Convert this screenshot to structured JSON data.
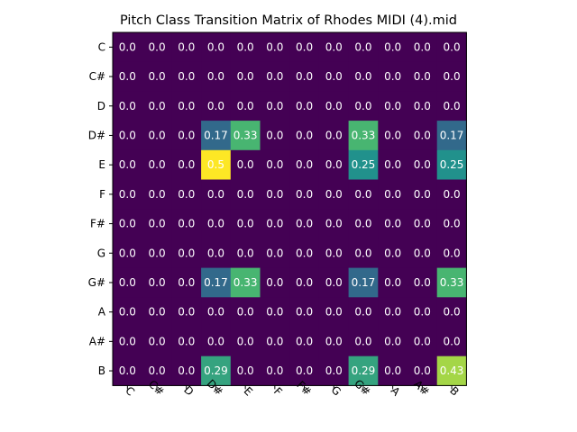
{
  "chart_data": {
    "type": "heatmap",
    "title": "Pitch Class Transition Matrix of Rhodes MIDI (4).mid",
    "xlabel": "",
    "ylabel": "",
    "x_categories": [
      "C",
      "C#",
      "D",
      "D#",
      "E",
      "F",
      "F#",
      "G",
      "G#",
      "A",
      "A#",
      "B"
    ],
    "y_categories": [
      "C",
      "C#",
      "D",
      "D#",
      "E",
      "F",
      "F#",
      "G",
      "G#",
      "A",
      "A#",
      "B"
    ],
    "x_tick_rotation_deg": 45,
    "colormap": "viridis",
    "value_range": [
      0,
      0.5
    ],
    "colorbar": false,
    "grid": false,
    "values": [
      [
        0.0,
        0.0,
        0.0,
        0.0,
        0.0,
        0.0,
        0.0,
        0.0,
        0.0,
        0.0,
        0.0,
        0.0
      ],
      [
        0.0,
        0.0,
        0.0,
        0.0,
        0.0,
        0.0,
        0.0,
        0.0,
        0.0,
        0.0,
        0.0,
        0.0
      ],
      [
        0.0,
        0.0,
        0.0,
        0.0,
        0.0,
        0.0,
        0.0,
        0.0,
        0.0,
        0.0,
        0.0,
        0.0
      ],
      [
        0.0,
        0.0,
        0.0,
        0.17,
        0.33,
        0.0,
        0.0,
        0.0,
        0.33,
        0.0,
        0.0,
        0.17
      ],
      [
        0.0,
        0.0,
        0.0,
        0.5,
        0.0,
        0.0,
        0.0,
        0.0,
        0.25,
        0.0,
        0.0,
        0.25
      ],
      [
        0.0,
        0.0,
        0.0,
        0.0,
        0.0,
        0.0,
        0.0,
        0.0,
        0.0,
        0.0,
        0.0,
        0.0
      ],
      [
        0.0,
        0.0,
        0.0,
        0.0,
        0.0,
        0.0,
        0.0,
        0.0,
        0.0,
        0.0,
        0.0,
        0.0
      ],
      [
        0.0,
        0.0,
        0.0,
        0.0,
        0.0,
        0.0,
        0.0,
        0.0,
        0.0,
        0.0,
        0.0,
        0.0
      ],
      [
        0.0,
        0.0,
        0.0,
        0.17,
        0.33,
        0.0,
        0.0,
        0.0,
        0.17,
        0.0,
        0.0,
        0.33
      ],
      [
        0.0,
        0.0,
        0.0,
        0.0,
        0.0,
        0.0,
        0.0,
        0.0,
        0.0,
        0.0,
        0.0,
        0.0
      ],
      [
        0.0,
        0.0,
        0.0,
        0.0,
        0.0,
        0.0,
        0.0,
        0.0,
        0.0,
        0.0,
        0.0,
        0.0
      ],
      [
        0.0,
        0.0,
        0.0,
        0.29,
        0.0,
        0.0,
        0.0,
        0.0,
        0.29,
        0.0,
        0.0,
        0.43
      ]
    ],
    "cell_labels": [
      [
        "0.0",
        "0.0",
        "0.0",
        "0.0",
        "0.0",
        "0.0",
        "0.0",
        "0.0",
        "0.0",
        "0.0",
        "0.0",
        "0.0"
      ],
      [
        "0.0",
        "0.0",
        "0.0",
        "0.0",
        "0.0",
        "0.0",
        "0.0",
        "0.0",
        "0.0",
        "0.0",
        "0.0",
        "0.0"
      ],
      [
        "0.0",
        "0.0",
        "0.0",
        "0.0",
        "0.0",
        "0.0",
        "0.0",
        "0.0",
        "0.0",
        "0.0",
        "0.0",
        "0.0"
      ],
      [
        "0.0",
        "0.0",
        "0.0",
        "0.17",
        "0.33",
        "0.0",
        "0.0",
        "0.0",
        "0.33",
        "0.0",
        "0.0",
        "0.17"
      ],
      [
        "0.0",
        "0.0",
        "0.0",
        "0.5",
        "0.0",
        "0.0",
        "0.0",
        "0.0",
        "0.25",
        "0.0",
        "0.0",
        "0.25"
      ],
      [
        "0.0",
        "0.0",
        "0.0",
        "0.0",
        "0.0",
        "0.0",
        "0.0",
        "0.0",
        "0.0",
        "0.0",
        "0.0",
        "0.0"
      ],
      [
        "0.0",
        "0.0",
        "0.0",
        "0.0",
        "0.0",
        "0.0",
        "0.0",
        "0.0",
        "0.0",
        "0.0",
        "0.0",
        "0.0"
      ],
      [
        "0.0",
        "0.0",
        "0.0",
        "0.0",
        "0.0",
        "0.0",
        "0.0",
        "0.0",
        "0.0",
        "0.0",
        "0.0",
        "0.0"
      ],
      [
        "0.0",
        "0.0",
        "0.0",
        "0.17",
        "0.33",
        "0.0",
        "0.0",
        "0.0",
        "0.17",
        "0.0",
        "0.0",
        "0.33"
      ],
      [
        "0.0",
        "0.0",
        "0.0",
        "0.0",
        "0.0",
        "0.0",
        "0.0",
        "0.0",
        "0.0",
        "0.0",
        "0.0",
        "0.0"
      ],
      [
        "0.0",
        "0.0",
        "0.0",
        "0.0",
        "0.0",
        "0.0",
        "0.0",
        "0.0",
        "0.0",
        "0.0",
        "0.0",
        "0.0"
      ],
      [
        "0.0",
        "0.0",
        "0.0",
        "0.29",
        "0.0",
        "0.0",
        "0.0",
        "0.0",
        "0.29",
        "0.0",
        "0.0",
        "0.43"
      ]
    ],
    "label_text_color": "#ffffff"
  }
}
